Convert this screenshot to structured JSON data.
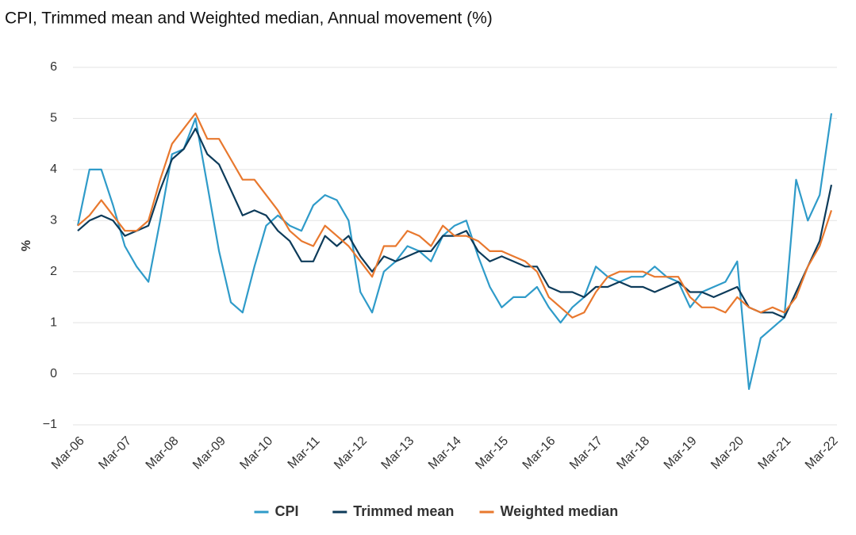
{
  "chart_data": {
    "type": "line",
    "title": "CPI, Trimmed mean and Weighted median, Annual movement (%)",
    "y_label": "%",
    "categories": [
      "Mar-06",
      null,
      null,
      null,
      "Mar-07",
      null,
      null,
      null,
      "Mar-08",
      null,
      null,
      null,
      "Mar-09",
      null,
      null,
      null,
      "Mar-10",
      null,
      null,
      null,
      "Mar-11",
      null,
      null,
      null,
      "Mar-12",
      null,
      null,
      null,
      "Mar-13",
      null,
      null,
      null,
      "Mar-14",
      null,
      null,
      null,
      "Mar-15",
      null,
      null,
      null,
      "Mar-16",
      null,
      null,
      null,
      "Mar-17",
      null,
      null,
      null,
      "Mar-18",
      null,
      null,
      null,
      "Mar-19",
      null,
      null,
      null,
      "Mar-20",
      null,
      null,
      null,
      "Mar-21",
      null,
      null,
      null,
      "Mar-22"
    ],
    "series": [
      {
        "name": "CPI",
        "color": "#2f9bc9",
        "values": [
          2.9,
          4.0,
          4.0,
          3.3,
          2.5,
          2.1,
          1.8,
          3.0,
          4.3,
          4.4,
          5.0,
          3.7,
          2.4,
          1.4,
          1.2,
          2.1,
          2.9,
          3.1,
          2.9,
          2.8,
          3.3,
          3.5,
          3.4,
          3.0,
          1.6,
          1.2,
          2.0,
          2.2,
          2.5,
          2.4,
          2.2,
          2.7,
          2.9,
          3.0,
          2.3,
          1.7,
          1.3,
          1.5,
          1.5,
          1.7,
          1.3,
          1.0,
          1.3,
          1.5,
          2.1,
          1.9,
          1.8,
          1.9,
          1.9,
          2.1,
          1.9,
          1.8,
          1.3,
          1.6,
          1.7,
          1.8,
          2.2,
          -0.3,
          0.7,
          0.9,
          1.1,
          3.8,
          3.0,
          3.5,
          5.1
        ]
      },
      {
        "name": "Trimmed mean",
        "color": "#0d3b5a",
        "values": [
          2.8,
          3.0,
          3.1,
          3.0,
          2.7,
          2.8,
          2.9,
          3.6,
          4.2,
          4.4,
          4.8,
          4.3,
          4.1,
          3.6,
          3.1,
          3.2,
          3.1,
          2.8,
          2.6,
          2.2,
          2.2,
          2.7,
          2.5,
          2.7,
          2.3,
          2.0,
          2.3,
          2.2,
          2.3,
          2.4,
          2.4,
          2.7,
          2.7,
          2.8,
          2.4,
          2.2,
          2.3,
          2.2,
          2.1,
          2.1,
          1.7,
          1.6,
          1.6,
          1.5,
          1.7,
          1.7,
          1.8,
          1.7,
          1.7,
          1.6,
          1.7,
          1.8,
          1.6,
          1.6,
          1.5,
          1.6,
          1.7,
          1.3,
          1.2,
          1.2,
          1.1,
          1.6,
          2.1,
          2.6,
          3.7
        ]
      },
      {
        "name": "Weighted median",
        "color": "#e8782e",
        "values": [
          2.9,
          3.1,
          3.4,
          3.1,
          2.8,
          2.8,
          3.0,
          3.8,
          4.5,
          4.8,
          5.1,
          4.6,
          4.6,
          4.2,
          3.8,
          3.8,
          3.5,
          3.2,
          2.8,
          2.6,
          2.5,
          2.9,
          2.7,
          2.5,
          2.2,
          1.9,
          2.5,
          2.5,
          2.8,
          2.7,
          2.5,
          2.9,
          2.7,
          2.7,
          2.6,
          2.4,
          2.4,
          2.3,
          2.2,
          2.0,
          1.5,
          1.3,
          1.1,
          1.2,
          1.6,
          1.9,
          2.0,
          2.0,
          2.0,
          1.9,
          1.9,
          1.9,
          1.5,
          1.3,
          1.3,
          1.2,
          1.5,
          1.3,
          1.2,
          1.3,
          1.2,
          1.5,
          2.1,
          2.5,
          3.2
        ]
      }
    ],
    "ylim": [
      -1,
      6
    ],
    "yticks": [
      {
        "value": -1,
        "label": "−1"
      },
      0,
      1,
      2,
      3,
      4,
      5,
      6
    ],
    "grid": true,
    "legend": "bottom"
  }
}
